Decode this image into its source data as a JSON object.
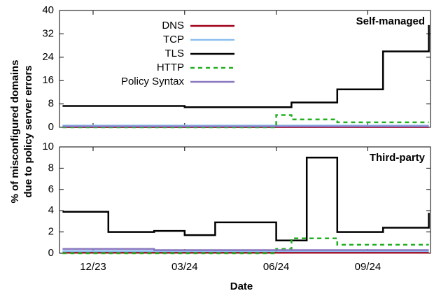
{
  "chart_data": [
    {
      "type": "line",
      "steps": true,
      "title": "Self-managed",
      "ylabel": [
        "% of misconfigured domains",
        "due to policy server errors"
      ],
      "legend": "top-left",
      "categories": [
        null,
        null,
        "12/23",
        null,
        null,
        null,
        null,
        null,
        "03/24",
        null,
        null,
        null,
        null,
        null,
        "06/24",
        null,
        null,
        null,
        null,
        null,
        "09/24",
        null,
        null,
        null,
        null
      ],
      "ylim": [
        0,
        40
      ],
      "yticks": [
        0,
        8,
        16,
        24,
        32,
        40
      ],
      "series": [
        {
          "name": "DNS",
          "color": "#a0001a",
          "values": [
            0.1,
            0.1,
            0.1,
            0.1,
            0.1,
            0.1,
            0.1,
            0.1,
            0.1,
            0.1,
            0.1,
            0.1,
            0.1,
            0.1,
            0.1,
            0.1,
            0.1,
            0.1,
            0.1,
            0.1,
            0.1,
            0.1,
            0.1,
            0.1,
            0.1
          ]
        },
        {
          "name": "TCP",
          "color": "#8cbff0",
          "values": [
            0.6,
            0.6,
            0.6,
            0.6,
            0.6,
            0.6,
            0.6,
            0.6,
            0.6,
            0.6,
            0.6,
            0.6,
            0.6,
            0.6,
            0.6,
            0.6,
            0.6,
            0.6,
            0.6,
            0.6,
            0.6,
            0.6,
            0.6,
            0.6,
            0.6
          ]
        },
        {
          "name": "TLS",
          "color": "#000000",
          "values": [
            7.3,
            7.3,
            7.3,
            7.3,
            7.3,
            7.3,
            7.3,
            7.3,
            6.9,
            6.9,
            6.9,
            6.9,
            6.9,
            6.9,
            6.9,
            8.5,
            8.5,
            8.5,
            13,
            13,
            13,
            26,
            26,
            26,
            35
          ]
        },
        {
          "name": "HTTP",
          "color": "#22b022",
          "dash": true,
          "values": [
            0,
            0,
            0,
            0,
            0,
            0,
            0,
            0,
            0,
            0,
            0,
            0,
            0,
            0,
            4.2,
            2.7,
            2.7,
            2.7,
            1.7,
            1.7,
            1.7,
            1.7,
            1.7,
            1.7,
            1.7
          ]
        },
        {
          "name": "Policy Syntax",
          "color": "#8a78c0",
          "values": [
            0.3,
            0.3,
            0.3,
            0.3,
            0.3,
            0.3,
            0.3,
            0.3,
            0.3,
            0.3,
            0.3,
            0.3,
            0.3,
            0.3,
            0.3,
            0.3,
            0.3,
            0.3,
            0.3,
            0.3,
            0.3,
            0.3,
            0.3,
            0.3,
            0.3
          ]
        }
      ]
    },
    {
      "type": "line",
      "steps": true,
      "title": "Third-party",
      "xlabel": "Date",
      "categories": [
        null,
        null,
        "12/23",
        null,
        null,
        null,
        null,
        null,
        "03/24",
        null,
        null,
        null,
        null,
        null,
        "06/24",
        null,
        null,
        null,
        null,
        null,
        "09/24",
        null,
        null,
        null,
        null
      ],
      "ylim": [
        0,
        10
      ],
      "yticks": [
        0,
        2,
        4,
        6,
        8,
        10
      ],
      "series": [
        {
          "name": "DNS",
          "color": "#a0001a",
          "values": [
            0.05,
            0.05,
            0.05,
            0.05,
            0.05,
            0.05,
            0.05,
            0.05,
            0.05,
            0.05,
            0.05,
            0.05,
            0.05,
            0.05,
            0.05,
            0.05,
            0.05,
            0.05,
            0.05,
            0.05,
            0.05,
            0.05,
            0.05,
            0.05,
            0.05
          ]
        },
        {
          "name": "TCP",
          "color": "#8cbff0",
          "values": [
            0.2,
            0.2,
            0.2,
            0.2,
            0.2,
            0.2,
            0.2,
            0.2,
            0.2,
            0.2,
            0.2,
            0.2,
            0.2,
            0.2,
            0.2,
            0.2,
            0.2,
            0.2,
            0.2,
            0.2,
            0.2,
            0.2,
            0.2,
            0.2,
            0.2
          ]
        },
        {
          "name": "TLS",
          "color": "#000000",
          "values": [
            3.9,
            3.9,
            3.9,
            2,
            2,
            2,
            2.1,
            2.1,
            1.7,
            1.7,
            2.9,
            2.9,
            2.9,
            2.9,
            1.2,
            1.2,
            9,
            9,
            2,
            2,
            2,
            2.4,
            2.4,
            2.4,
            3.8
          ]
        },
        {
          "name": "HTTP",
          "color": "#22b022",
          "dash": true,
          "values": [
            0,
            0,
            0,
            0,
            0,
            0,
            0,
            0,
            0,
            0,
            0,
            0,
            0,
            0,
            0.4,
            1.4,
            1.4,
            1.4,
            0.8,
            0.8,
            0.8,
            0.8,
            0.8,
            0.8,
            0.8
          ]
        },
        {
          "name": "Policy Syntax",
          "color": "#8a78c0",
          "values": [
            0.4,
            0.4,
            0.4,
            0.4,
            0.4,
            0.4,
            0.3,
            0.3,
            0.3,
            0.3,
            0.3,
            0.3,
            0.3,
            0.3,
            0.3,
            0.3,
            0.3,
            0.3,
            0.3,
            0.3,
            0.3,
            0.3,
            0.3,
            0.3,
            0.3
          ]
        }
      ]
    }
  ]
}
